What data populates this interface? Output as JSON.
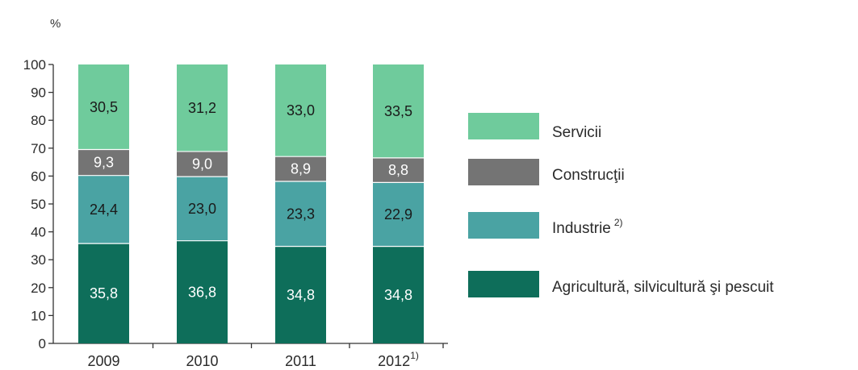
{
  "chart_data": {
    "type": "bar",
    "stacked": true,
    "ylabel": "%",
    "ylim": [
      0,
      100
    ],
    "yticks": [
      0,
      10,
      20,
      30,
      40,
      50,
      60,
      70,
      80,
      90,
      100
    ],
    "grid": false,
    "legend_position": "right",
    "categories": [
      "2009",
      "2010",
      "2011",
      "2012"
    ],
    "category_superscripts": [
      "",
      "",
      "",
      "1)"
    ],
    "series": [
      {
        "name": "Agricultură, silvicultură şi pescuit",
        "name_superscript": "",
        "values": [
          35.8,
          36.8,
          34.8,
          34.8
        ],
        "labels": [
          "35,8",
          "36,8",
          "34,8",
          "34,8"
        ],
        "color": "#0e6e5a",
        "label_color": "#ffffff"
      },
      {
        "name": "Industrie",
        "name_superscript": "2)",
        "values": [
          24.4,
          23.0,
          23.3,
          22.9
        ],
        "labels": [
          "24,4",
          "23,0",
          "23,3",
          "22,9"
        ],
        "color": "#4aa3a3",
        "label_color": "#1a1a1a"
      },
      {
        "name": "Construcţii",
        "name_superscript": "",
        "values": [
          9.3,
          9.0,
          8.9,
          8.8
        ],
        "labels": [
          "9,3",
          "9,0",
          "8,9",
          "8,8"
        ],
        "color": "#747474",
        "label_color": "#ffffff"
      },
      {
        "name": "Servicii",
        "name_superscript": "",
        "values": [
          30.5,
          31.2,
          33.0,
          33.5
        ],
        "labels": [
          "30,5",
          "31,2",
          "33,0",
          "33,5"
        ],
        "color": "#6fcb9c",
        "label_color": "#1a1a1a"
      }
    ],
    "legend_order": [
      3,
      2,
      1,
      0
    ]
  }
}
